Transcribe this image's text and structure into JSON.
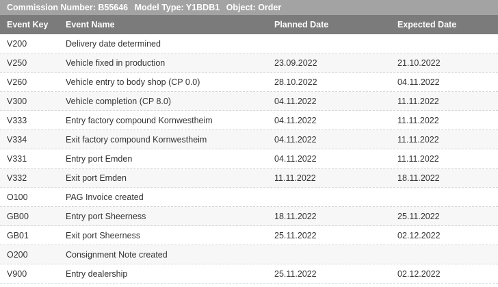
{
  "header": {
    "items": [
      "Commission Number: B55646",
      "Model Type: Y1BDB1",
      "Object: Order"
    ]
  },
  "table": {
    "columns": [
      "Event Key",
      "Event Name",
      "Planned Date",
      "Expected Date"
    ],
    "rows": [
      [
        "V200",
        "Delivery date determined",
        null,
        null
      ],
      [
        "V250",
        "Vehicle fixed in production",
        "23.09.2022",
        "21.10.2022"
      ],
      [
        "V260",
        "Vehicle entry to body shop (CP 0.0)",
        "28.10.2022",
        "04.11.2022"
      ],
      [
        "V300",
        "Vehicle completion (CP 8.0)",
        "04.11.2022",
        "11.11.2022"
      ],
      [
        "V333",
        "Entry factory compound Kornwestheim",
        "04.11.2022",
        "11.11.2022"
      ],
      [
        "V334",
        "Exit factory compound Kornwestheim",
        "04.11.2022",
        "11.11.2022"
      ],
      [
        "V331",
        "Entry port Emden",
        "04.11.2022",
        "11.11.2022"
      ],
      [
        "V332",
        "Exit port Emden",
        "11.11.2022",
        "18.11.2022"
      ],
      [
        "O100",
        "PAG Invoice created",
        null,
        null
      ],
      [
        "GB00",
        "Entry port Sheerness",
        "18.11.2022",
        "25.11.2022"
      ],
      [
        "GB01",
        "Exit port Sheerness",
        "25.11.2022",
        "02.12.2022"
      ],
      [
        "O200",
        "Consignment Note created",
        null,
        null
      ],
      [
        "V900",
        "Entry dealership",
        "25.11.2022",
        "02.12.2022"
      ]
    ]
  }
}
